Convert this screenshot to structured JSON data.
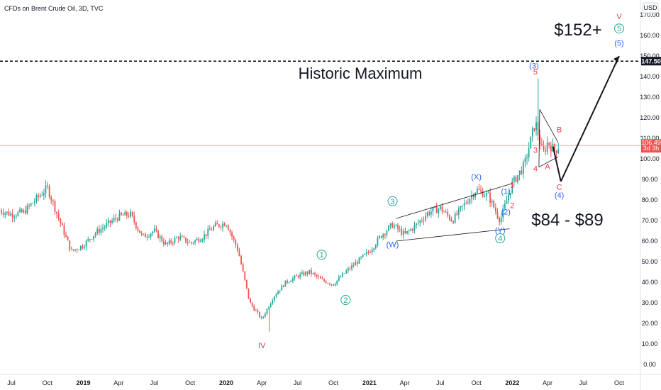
{
  "header": {
    "symbol": "CFDs on Brent Crude Oil, 3D, TVC"
  },
  "currency": "USD",
  "colors": {
    "up": "#26a69a",
    "down": "#ef5350",
    "level": "#000000",
    "price_tag": "#ef5350",
    "teal_label": "#22ab94",
    "blue_label": "#2962ff",
    "red_label": "#f23645"
  },
  "chart_data": {
    "type": "candlestick",
    "y_axis": {
      "min": 0,
      "max": 170,
      "ticks": [
        "0.00",
        "10.00",
        "20.00",
        "30.00",
        "40.00",
        "50.00",
        "60.00",
        "70.00",
        "80.00",
        "90.00",
        "100.00",
        "110.00",
        "120.00",
        "130.00",
        "140.00",
        "150.00",
        "160.00",
        "170.00"
      ]
    },
    "x_ticks": [
      {
        "label": "Jul",
        "date": "2018-07",
        "bold": false
      },
      {
        "label": "Oct",
        "date": "2018-10",
        "bold": false
      },
      {
        "label": "2019",
        "date": "2019-01",
        "bold": true
      },
      {
        "label": "Apr",
        "date": "2019-04",
        "bold": false
      },
      {
        "label": "Jul",
        "date": "2019-07",
        "bold": false
      },
      {
        "label": "Oct",
        "date": "2019-10",
        "bold": false
      },
      {
        "label": "2020",
        "date": "2020-01",
        "bold": true
      },
      {
        "label": "Apr",
        "date": "2020-04",
        "bold": false
      },
      {
        "label": "Jul",
        "date": "2020-07",
        "bold": false
      },
      {
        "label": "Oct",
        "date": "2020-10",
        "bold": false
      },
      {
        "label": "2021",
        "date": "2021-01",
        "bold": true
      },
      {
        "label": "Apr",
        "date": "2021-04",
        "bold": false
      },
      {
        "label": "Jul",
        "date": "2021-07",
        "bold": false
      },
      {
        "label": "Oct",
        "date": "2021-10",
        "bold": false
      },
      {
        "label": "2022",
        "date": "2022-01",
        "bold": true
      },
      {
        "label": "Apr",
        "date": "2022-04",
        "bold": false
      },
      {
        "label": "Jul",
        "date": "2022-07",
        "bold": false
      },
      {
        "label": "Oct",
        "date": "2022-10",
        "bold": false
      }
    ],
    "price_path": [
      [
        "2018-06",
        75
      ],
      [
        "2018-07",
        73
      ],
      [
        "2018-08",
        74
      ],
      [
        "2018-10",
        86
      ],
      [
        "2018-11",
        70
      ],
      [
        "2018-12",
        55
      ],
      [
        "2019-01",
        58
      ],
      [
        "2019-02",
        64
      ],
      [
        "2019-04",
        72
      ],
      [
        "2019-05",
        73
      ],
      [
        "2019-06",
        62
      ],
      [
        "2019-07",
        65
      ],
      [
        "2019-08",
        58
      ],
      [
        "2019-09",
        62
      ],
      [
        "2019-10",
        59
      ],
      [
        "2019-11",
        62
      ],
      [
        "2019-12",
        67
      ],
      [
        "2020-01",
        69
      ],
      [
        "2020-02",
        55
      ],
      [
        "2020-03",
        30
      ],
      [
        "2020-04",
        22
      ],
      [
        "2020-05",
        33
      ],
      [
        "2020-06",
        40
      ],
      [
        "2020-07",
        43
      ],
      [
        "2020-08",
        45
      ],
      [
        "2020-09",
        41
      ],
      [
        "2020-10",
        39
      ],
      [
        "2020-11",
        45
      ],
      [
        "2020-12",
        50
      ],
      [
        "2021-01",
        55
      ],
      [
        "2021-02",
        63
      ],
      [
        "2021-03",
        68
      ],
      [
        "2021-04",
        63
      ],
      [
        "2021-05",
        68
      ],
      [
        "2021-06",
        74
      ],
      [
        "2021-07",
        76
      ],
      [
        "2021-08",
        70
      ],
      [
        "2021-09",
        78
      ],
      [
        "2021-10",
        85
      ],
      [
        "2021-11",
        82
      ],
      [
        "2021-12",
        70
      ],
      [
        "2022-01",
        88
      ],
      [
        "2022-02",
        97
      ],
      [
        "2022-03",
        118
      ],
      [
        "2022-03-20",
        102
      ],
      [
        "2022-04",
        108
      ],
      [
        "2022-04-20",
        104
      ],
      [
        "2022-05",
        106.49
      ]
    ],
    "last_price": "106.49",
    "last_price_sub": "3d 3h",
    "level": {
      "value": 147.5,
      "label": "147.50"
    },
    "annotations": {
      "historic": "Historic Maximum",
      "target_high": "$152+",
      "target_low": "$84 - $89"
    },
    "wave_labels": [
      {
        "text": "IV",
        "date": "2020-04",
        "price": 8,
        "color": "red",
        "circle": false
      },
      {
        "text": "1",
        "date": "2020-09",
        "price": 52,
        "color": "teal",
        "circle": true
      },
      {
        "text": "2",
        "date": "2020-11",
        "price": 30,
        "color": "teal",
        "circle": true
      },
      {
        "text": "3",
        "date": "2021-03",
        "price": 78,
        "color": "teal",
        "circle": true
      },
      {
        "text": "(W)",
        "date": "2021-03",
        "price": 57,
        "color": "blue",
        "circle": false
      },
      {
        "text": "(X)",
        "date": "2021-10",
        "price": 90,
        "color": "blue",
        "circle": false
      },
      {
        "text": "(Y)",
        "date": "2021-12",
        "price": 64,
        "color": "blue",
        "circle": false
      },
      {
        "text": "4",
        "date": "2021-12",
        "price": 60,
        "color": "teal",
        "circle": true
      },
      {
        "text": "(1)",
        "date": "2021-12",
        "price": 83,
        "color": "blue",
        "circle": false
      },
      {
        "text": "(2)",
        "date": "2021-12",
        "price": 73,
        "color": "blue",
        "circle": false
      },
      {
        "text": "1",
        "date": "2022-01",
        "price": 86,
        "color": "red",
        "circle": false
      },
      {
        "text": "2",
        "date": "2022-01",
        "price": 76,
        "color": "red",
        "circle": false
      },
      {
        "text": "3",
        "date": "2022-03",
        "price": 103,
        "color": "red",
        "circle": false
      },
      {
        "text": "4",
        "date": "2022-03",
        "price": 94,
        "color": "red",
        "circle": false
      },
      {
        "text": "(3)",
        "date": "2022-03",
        "price": 144,
        "color": "blue",
        "circle": false
      },
      {
        "text": "5",
        "date": "2022-03",
        "price": 141,
        "color": "red",
        "circle": false
      },
      {
        "text": "A",
        "date": "2022-04",
        "price": 95,
        "color": "red",
        "circle": false
      },
      {
        "text": "B",
        "date": "2022-05",
        "price": 113,
        "color": "red",
        "circle": false
      },
      {
        "text": "C",
        "date": "2022-05",
        "price": 85,
        "color": "red",
        "circle": false
      },
      {
        "text": "(4)",
        "date": "2022-05",
        "price": 81,
        "color": "blue",
        "circle": false
      },
      {
        "text": "(5)",
        "date": "2022-10",
        "price": 155,
        "color": "blue",
        "circle": false
      },
      {
        "text": "5",
        "date": "2022-10",
        "price": 162,
        "color": "teal",
        "circle": true
      },
      {
        "text": "V",
        "date": "2022-10",
        "price": 168,
        "color": "red",
        "circle": false
      }
    ]
  }
}
